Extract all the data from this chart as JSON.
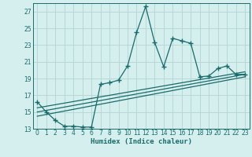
{
  "xlabel": "Humidex (Indice chaleur)",
  "bg_color": "#d5eeee",
  "grid_color": "#b8d8d8",
  "line_color": "#1a6b6b",
  "xlim": [
    -0.5,
    23.5
  ],
  "ylim": [
    13,
    28
  ],
  "yticks": [
    13,
    15,
    17,
    19,
    21,
    23,
    25,
    27
  ],
  "xticks": [
    0,
    1,
    2,
    3,
    4,
    5,
    6,
    7,
    8,
    9,
    10,
    11,
    12,
    13,
    14,
    15,
    16,
    17,
    18,
    19,
    20,
    21,
    22,
    23
  ],
  "series1_x": [
    0,
    1,
    2,
    3,
    4,
    5,
    6,
    7,
    8,
    9,
    10,
    11,
    12,
    13,
    14,
    15,
    16,
    17,
    18,
    19,
    20,
    21,
    22,
    23
  ],
  "series1_y": [
    16.2,
    15.0,
    14.0,
    13.3,
    13.3,
    13.2,
    13.2,
    18.3,
    18.5,
    18.8,
    20.5,
    24.5,
    27.6,
    23.3,
    20.4,
    23.8,
    23.5,
    23.2,
    19.2,
    19.3,
    20.2,
    20.5,
    19.5,
    19.5
  ],
  "line2_x": [
    0,
    23
  ],
  "line2_y": [
    15.5,
    19.8
  ],
  "line3_x": [
    0,
    23
  ],
  "line3_y": [
    15.0,
    19.5
  ],
  "line4_x": [
    0,
    23
  ],
  "line4_y": [
    14.5,
    19.2
  ]
}
